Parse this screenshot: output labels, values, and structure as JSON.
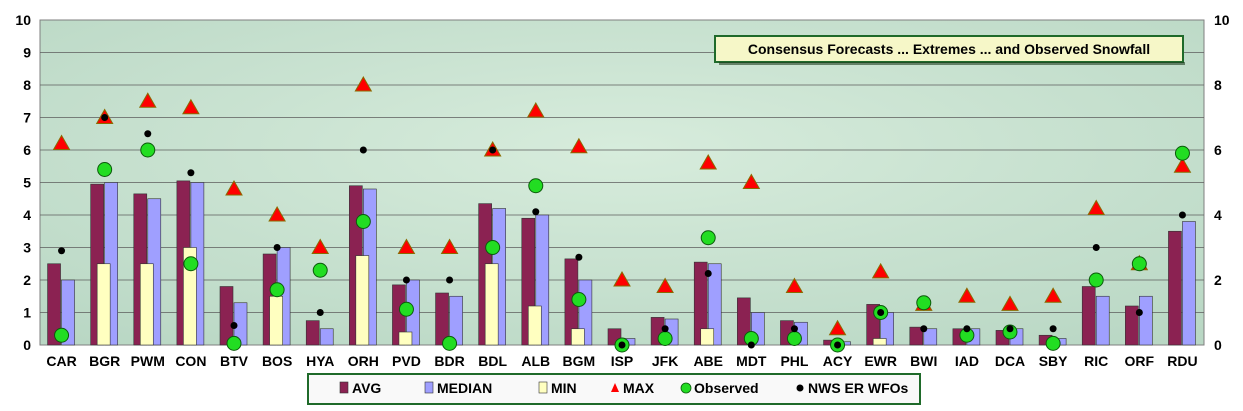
{
  "chart_data": {
    "type": "bar",
    "title": "Consensus Forecasts ... Extremes ... and Observed Snowfall",
    "ylim": [
      0,
      10
    ],
    "yticks": [
      "0",
      "1",
      "2",
      "3",
      "4",
      "5",
      "6",
      "7",
      "8",
      "9",
      "10"
    ],
    "y2ticks": [
      "0",
      "2",
      "4",
      "6",
      "8",
      "10"
    ],
    "grid": true,
    "legend_position": "bottom",
    "categories": [
      "CAR",
      "BGR",
      "PWM",
      "CON",
      "BTV",
      "BOS",
      "HYA",
      "ORH",
      "PVD",
      "BDR",
      "BDL",
      "ALB",
      "BGM",
      "ISP",
      "JFK",
      "ABE",
      "MDT",
      "PHL",
      "ACY",
      "EWR",
      "BWI",
      "IAD",
      "DCA",
      "SBY",
      "RIC",
      "ORF",
      "RDU"
    ],
    "series": [
      {
        "name": "AVG",
        "kind": "bar",
        "color": "#8b2252",
        "values": [
          2.5,
          4.95,
          4.65,
          5.05,
          1.8,
          2.8,
          0.75,
          4.9,
          1.85,
          1.6,
          4.35,
          3.9,
          2.65,
          0.5,
          0.85,
          2.55,
          1.45,
          0.75,
          0.15,
          1.25,
          0.55,
          0.5,
          0.45,
          0.3,
          1.8,
          1.2,
          3.5
        ]
      },
      {
        "name": "MEDIAN",
        "kind": "bar",
        "color": "#9f9fff",
        "values": [
          2.0,
          5.0,
          4.5,
          5.0,
          1.3,
          3.0,
          0.5,
          4.8,
          2.0,
          1.5,
          4.2,
          4.0,
          2.0,
          0.2,
          0.8,
          2.5,
          1.0,
          0.7,
          0.1,
          1.0,
          0.5,
          0.5,
          0.5,
          0.2,
          1.5,
          1.5,
          3.8
        ]
      },
      {
        "name": "MIN",
        "kind": "bar",
        "color": "#ffffc0",
        "values": [
          0,
          2.5,
          2.5,
          3.0,
          0,
          1.5,
          0,
          2.75,
          0.4,
          0,
          2.5,
          1.2,
          0.5,
          0,
          0,
          0.5,
          0,
          0,
          0,
          0.2,
          0,
          0,
          0,
          0,
          0,
          0,
          0
        ]
      },
      {
        "name": "MAX",
        "kind": "triangle",
        "color": "#ff0000",
        "values": [
          6.2,
          7.0,
          7.5,
          7.3,
          4.8,
          4.0,
          3.0,
          8.0,
          3.0,
          3.0,
          6.0,
          7.2,
          6.1,
          2.0,
          1.8,
          5.6,
          5.0,
          1.8,
          0.5,
          2.25,
          1.25,
          1.5,
          1.25,
          1.5,
          4.2,
          2.5,
          5.5
        ]
      },
      {
        "name": "Observed",
        "kind": "circle",
        "color": "#22dd22",
        "values": [
          0.3,
          5.4,
          6.0,
          2.5,
          0.05,
          1.7,
          2.3,
          3.8,
          1.1,
          0.05,
          3.0,
          4.9,
          1.4,
          0.0,
          0.2,
          3.3,
          0.2,
          0.2,
          0.0,
          1.0,
          1.3,
          0.3,
          0.4,
          0.05,
          2.0,
          2.5,
          5.9
        ]
      },
      {
        "name": "NWS ER WFOs",
        "kind": "dot",
        "color": "#000000",
        "values": [
          2.9,
          7.0,
          6.5,
          5.3,
          0.6,
          3.0,
          1.0,
          6.0,
          2.0,
          2.0,
          6.0,
          4.1,
          2.7,
          0.0,
          0.5,
          2.2,
          0.0,
          0.5,
          0.0,
          1.0,
          0.5,
          0.5,
          0.5,
          0.5,
          3.0,
          1.0,
          4.0
        ]
      }
    ]
  }
}
